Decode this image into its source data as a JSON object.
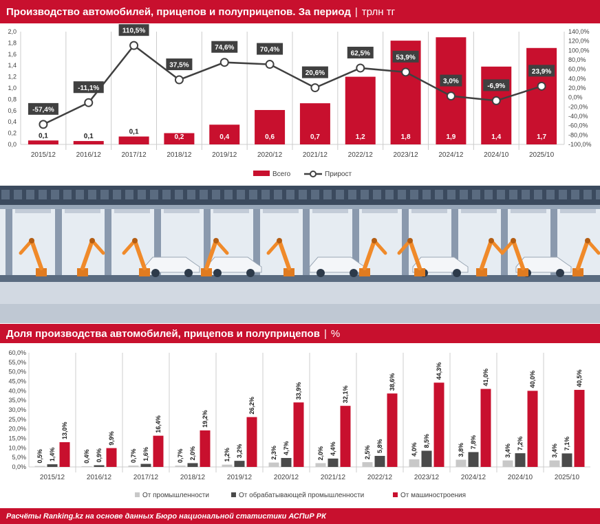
{
  "header1": {
    "title": "Производство автомобилей, прицепов и полуприцепов. За период",
    "separator": "|",
    "unit": "трлн тг"
  },
  "header2": {
    "title": "Доля производства автомобилей, прицепов и полуприцепов",
    "separator": "|",
    "unit": "%"
  },
  "footer": {
    "text": "Расчёты Ranking.kz на основе данных Бюро национальной статистики АСПиР РК"
  },
  "colors": {
    "brand_red": "#c8102e",
    "line": "#404040",
    "light_gray": "#c8c8c8",
    "dark_gray": "#4a4a4a"
  },
  "chart_data": [
    {
      "type": "bar",
      "categories": [
        "2015/12",
        "2016/12",
        "2017/12",
        "2018/12",
        "2019/12",
        "2020/12",
        "2021/12",
        "2022/12",
        "2023/12",
        "2024/12",
        "2024/10",
        "2025/10"
      ],
      "series": [
        {
          "name": "Всего",
          "type": "bar",
          "axis": "left",
          "values": [
            0.07,
            0.06,
            0.14,
            0.2,
            0.35,
            0.61,
            0.73,
            1.2,
            1.84,
            1.9,
            1.38,
            1.71
          ],
          "labels": [
            "0,1",
            "0,1",
            "0,1",
            "0,2",
            "0,4",
            "0,6",
            "0,7",
            "1,2",
            "1,8",
            "1,9",
            "1,4",
            "1,7"
          ]
        },
        {
          "name": "Прирост",
          "type": "line",
          "axis": "right",
          "values": [
            -57.4,
            -11.1,
            110.5,
            37.5,
            74.6,
            70.4,
            20.6,
            62.5,
            53.9,
            3.0,
            -6.9,
            23.9
          ],
          "labels": [
            "-57,4%",
            "-11,1%",
            "110,5%",
            "37,5%",
            "74,6%",
            "70,4%",
            "20,6%",
            "62,5%",
            "53,9%",
            "3,0%",
            "-6,9%",
            "23,9%"
          ]
        }
      ],
      "ylim_left": [
        0,
        2.0
      ],
      "ylim_right": [
        -100,
        140
      ],
      "left_ticks": [
        "0,0",
        "0,2",
        "0,4",
        "0,6",
        "0,8",
        "1,0",
        "1,2",
        "1,4",
        "1,6",
        "1,8",
        "2,0"
      ],
      "right_ticks": [
        "-100,0%",
        "-80,0%",
        "-60,0%",
        "-40,0%",
        "-20,0%",
        "0,0%",
        "20,0%",
        "40,0%",
        "60,0%",
        "80,0%",
        "100,0%",
        "120,0%",
        "140,0%"
      ],
      "legend": "bottom",
      "grid": false
    },
    {
      "type": "bar",
      "categories": [
        "2015/12",
        "2016/12",
        "2017/12",
        "2018/12",
        "2019/12",
        "2020/12",
        "2021/12",
        "2022/12",
        "2023/12",
        "2024/12",
        "2024/10",
        "2025/10"
      ],
      "series": [
        {
          "name": "От промышленности",
          "values": [
            0.5,
            0.4,
            0.7,
            0.7,
            1.2,
            2.3,
            2.0,
            2.5,
            4.0,
            3.8,
            3.4,
            3.4
          ],
          "labels": [
            "0,5%",
            "0,4%",
            "0,7%",
            "0,7%",
            "1,2%",
            "2,3%",
            "2,0%",
            "2,5%",
            "4,0%",
            "3,8%",
            "3,4%",
            "3,4%"
          ]
        },
        {
          "name": "От обрабатывающей промышленности",
          "values": [
            1.4,
            0.9,
            1.6,
            2.0,
            3.2,
            4.7,
            4.4,
            5.8,
            8.5,
            7.8,
            7.2,
            7.1
          ],
          "labels": [
            "1,4%",
            "0,9%",
            "1,6%",
            "2,0%",
            "3,2%",
            "4,7%",
            "4,4%",
            "5,8%",
            "8,5%",
            "7,8%",
            "7,2%",
            "7,1%"
          ]
        },
        {
          "name": "От машиностроения",
          "values": [
            13.0,
            9.9,
            16.4,
            19.2,
            26.2,
            33.9,
            32.1,
            38.6,
            44.3,
            41.0,
            40.0,
            40.5
          ],
          "labels": [
            "13,0%",
            "9,9%",
            "16,4%",
            "19,2%",
            "26,2%",
            "33,9%",
            "32,1%",
            "38,6%",
            "44,3%",
            "41,0%",
            "40,0%",
            "40,5%"
          ]
        }
      ],
      "ylim": [
        0,
        60
      ],
      "ticks": [
        "0,0%",
        "5,0%",
        "10,0%",
        "15,0%",
        "20,0%",
        "25,0%",
        "30,0%",
        "35,0%",
        "40,0%",
        "45,0%",
        "50,0%",
        "55,0%",
        "60,0%"
      ],
      "legend": "bottom",
      "grid": false
    }
  ]
}
